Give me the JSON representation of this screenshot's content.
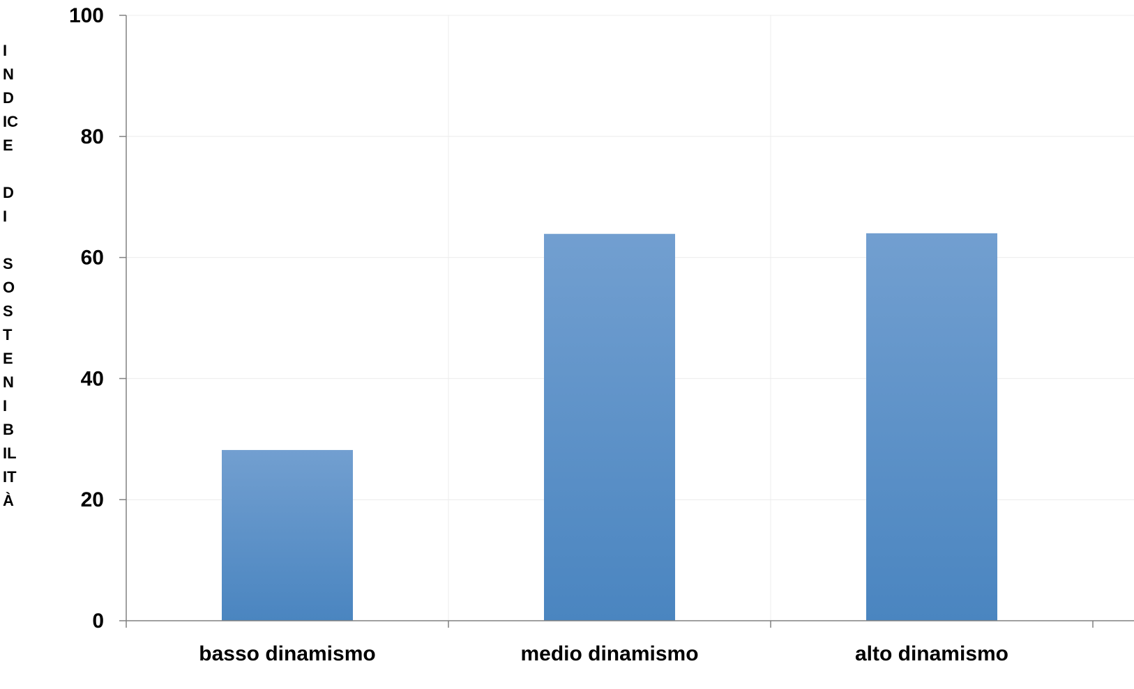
{
  "chart_data": {
    "type": "bar",
    "title": "",
    "xlabel": "",
    "ylabel": "I\nN\nD\nIC\nE\n\nD\nI\n\nS\nO\nS\nT\nE\nN\nI\nB\nIL\nIT\nÀ",
    "categories": [
      "basso dinamismo",
      "medio dinamismo",
      "alto dinamismo"
    ],
    "values": [
      28.2,
      63.9,
      64.0
    ],
    "ylim": [
      0,
      100
    ],
    "yticks": [
      0,
      20,
      40,
      60,
      80,
      100
    ],
    "grid": true,
    "legend": "none",
    "colors": {
      "bar_top": "#729fd0",
      "bar_bottom": "#4a85c0",
      "axis": "#808080",
      "grid": "#ececec"
    }
  }
}
